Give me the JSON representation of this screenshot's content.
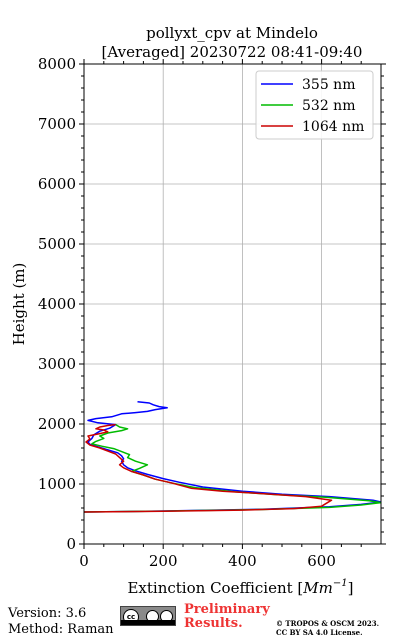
{
  "chart_data": {
    "type": "line",
    "title": "pollyxt_cpv at Mindelo",
    "subtitle": "[Averaged] 20230722 08:41-09:40",
    "xlabel": "Extinction Coefficient [Mm⁻¹]",
    "xlabel_base": "Extinction Coefficient [",
    "xlabel_unit": "Mm",
    "xlabel_exp": "−1",
    "xlabel_end": "]",
    "ylabel": "Height (m)",
    "xlim": [
      0,
      750
    ],
    "ylim": [
      0,
      8000
    ],
    "x_ticks": [
      0,
      200,
      400,
      600
    ],
    "y_ticks": [
      0,
      1000,
      2000,
      3000,
      4000,
      5000,
      6000,
      7000,
      8000
    ],
    "x_tick_labels": [
      "0",
      "200",
      "400",
      "600"
    ],
    "y_tick_labels": [
      "0",
      "1000",
      "2000",
      "3000",
      "4000",
      "5000",
      "6000",
      "7000",
      "8000"
    ],
    "grid": true,
    "legend_position": "top-right",
    "series": [
      {
        "name": "355 nm",
        "color": "#0000ff",
        "points": [
          [
            0,
            533
          ],
          [
            200,
            550
          ],
          [
            450,
            580
          ],
          [
            620,
            620
          ],
          [
            700,
            660
          ],
          [
            750,
            700
          ],
          [
            730,
            730
          ],
          [
            620,
            790
          ],
          [
            500,
            830
          ],
          [
            400,
            880
          ],
          [
            300,
            950
          ],
          [
            240,
            1030
          ],
          [
            200,
            1090
          ],
          [
            160,
            1160
          ],
          [
            130,
            1220
          ],
          [
            110,
            1270
          ],
          [
            100,
            1320
          ],
          [
            95,
            1380
          ],
          [
            100,
            1420
          ],
          [
            95,
            1470
          ],
          [
            85,
            1520
          ],
          [
            60,
            1570
          ],
          [
            35,
            1620
          ],
          [
            15,
            1660
          ],
          [
            10,
            1700
          ],
          [
            20,
            1760
          ],
          [
            25,
            1820
          ],
          [
            40,
            1880
          ],
          [
            65,
            1930
          ],
          [
            80,
            1990
          ],
          [
            35,
            2020
          ],
          [
            10,
            2060
          ],
          [
            30,
            2090
          ],
          [
            70,
            2120
          ],
          [
            95,
            2170
          ],
          [
            130,
            2190
          ],
          [
            160,
            2210
          ],
          [
            180,
            2240
          ],
          [
            210,
            2270
          ],
          [
            190,
            2290
          ],
          [
            175,
            2320
          ],
          [
            165,
            2350
          ],
          [
            135,
            2370
          ]
        ]
      },
      {
        "name": "532 nm",
        "color": "#00bb00",
        "points": [
          [
            0,
            533
          ],
          [
            200,
            548
          ],
          [
            450,
            575
          ],
          [
            620,
            610
          ],
          [
            700,
            650
          ],
          [
            750,
            690
          ],
          [
            720,
            720
          ],
          [
            610,
            780
          ],
          [
            490,
            820
          ],
          [
            380,
            870
          ],
          [
            280,
            940
          ],
          [
            220,
            1020
          ],
          [
            180,
            1080
          ],
          [
            150,
            1150
          ],
          [
            120,
            1210
          ],
          [
            140,
            1260
          ],
          [
            160,
            1320
          ],
          [
            130,
            1380
          ],
          [
            110,
            1440
          ],
          [
            115,
            1490
          ],
          [
            95,
            1540
          ],
          [
            75,
            1590
          ],
          [
            45,
            1630
          ],
          [
            20,
            1670
          ],
          [
            30,
            1710
          ],
          [
            50,
            1760
          ],
          [
            40,
            1800
          ],
          [
            60,
            1850
          ],
          [
            95,
            1890
          ],
          [
            110,
            1920
          ],
          [
            90,
            1950
          ],
          [
            80,
            1990
          ]
        ]
      },
      {
        "name": "1064 nm",
        "color": "#cc0000",
        "points": [
          [
            0,
            533
          ],
          [
            200,
            545
          ],
          [
            400,
            565
          ],
          [
            530,
            590
          ],
          [
            600,
            630
          ],
          [
            625,
            730
          ],
          [
            560,
            790
          ],
          [
            450,
            840
          ],
          [
            350,
            880
          ],
          [
            270,
            930
          ],
          [
            220,
            1020
          ],
          [
            180,
            1080
          ],
          [
            150,
            1150
          ],
          [
            120,
            1210
          ],
          [
            100,
            1270
          ],
          [
            90,
            1320
          ],
          [
            100,
            1380
          ],
          [
            90,
            1440
          ],
          [
            80,
            1500
          ],
          [
            60,
            1550
          ],
          [
            40,
            1600
          ],
          [
            15,
            1650
          ],
          [
            5,
            1700
          ],
          [
            15,
            1750
          ],
          [
            10,
            1800
          ],
          [
            40,
            1840
          ],
          [
            60,
            1870
          ],
          [
            50,
            1900
          ],
          [
            30,
            1920
          ],
          [
            40,
            1950
          ],
          [
            60,
            1975
          ],
          [
            80,
            1990
          ]
        ]
      }
    ]
  },
  "footer": {
    "version": "Version: 3.6",
    "method": "Method: Raman",
    "cc_label": "cc",
    "preliminary_line1": "Preliminary",
    "preliminary_line2": "Results.",
    "copyright_line1": "© TROPOS & OSCM 2023.",
    "copyright_line2": "CC BY SA 4.0 License."
  }
}
